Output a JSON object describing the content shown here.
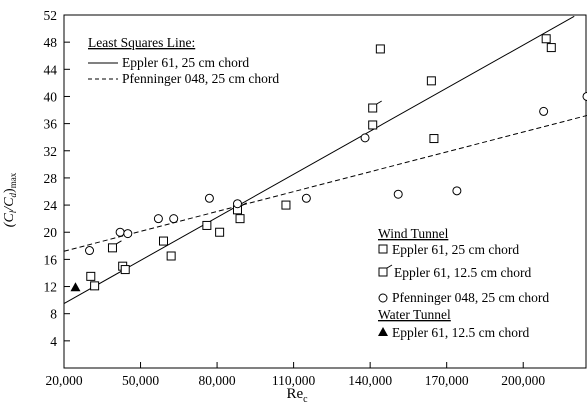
{
  "chart_data": {
    "type": "scatter",
    "xlabel": "Re",
    "xlabel_sub": "c",
    "ylabel_parts": [
      "(C",
      "l",
      "/C",
      "d",
      ")",
      "max"
    ],
    "xlim": [
      20000,
      225000
    ],
    "ylim": [
      0,
      52
    ],
    "x_ticks": [
      20000,
      50000,
      80000,
      110000,
      140000,
      170000,
      200000
    ],
    "x_tick_labels": [
      "20,000",
      "50,000",
      "80,000",
      "110,000",
      "140,000",
      "170,000",
      "200,000"
    ],
    "y_ticks": [
      4,
      8,
      12,
      16,
      20,
      24,
      28,
      32,
      36,
      40,
      44,
      48,
      52
    ],
    "y_tick_labels": [
      "4",
      "8",
      "12",
      "16",
      "20",
      "24",
      "28",
      "32",
      "36",
      "40",
      "44",
      "48",
      "52"
    ],
    "grid": false,
    "legend_lines": {
      "placement": "top-left",
      "title": "Least Squares Line:",
      "entries": [
        {
          "label": "Eppler 61, 25 cm chord",
          "style": "solid"
        },
        {
          "label": "Pfenninger 048, 25 cm chord",
          "style": "dashed"
        }
      ]
    },
    "legend_markers": {
      "placement": "bottom-right",
      "groups": [
        {
          "title": "Wind Tunnel",
          "entries": [
            {
              "label": "Eppler 61, 25 cm chord",
              "marker": "square"
            },
            {
              "label": "Eppler 61, 12.5 cm chord",
              "marker": "square-flag"
            },
            {
              "label": "Pfenninger 048, 25 cm chord",
              "marker": "circle"
            }
          ]
        },
        {
          "title": "Water Tunnel",
          "entries": [
            {
              "label": "Eppler 61, 12.5 cm chord",
              "marker": "triangle"
            }
          ]
        }
      ]
    },
    "lines": [
      {
        "style": "solid",
        "x": [
          20000,
          220000
        ],
        "y": [
          9.5,
          51.8
        ]
      },
      {
        "style": "dashed",
        "x": [
          20000,
          225000
        ],
        "y": [
          17.2,
          37.2
        ]
      }
    ],
    "series": [
      {
        "marker": "square",
        "x": [
          30500,
          32000,
          43000,
          44000,
          59000,
          62000,
          76000,
          81000,
          89000,
          107000,
          141000,
          144000,
          164000,
          165000,
          209000,
          211000
        ],
        "y": [
          13.5,
          12.1,
          15.0,
          14.5,
          18.7,
          16.5,
          21.0,
          20.0,
          22.0,
          24.0,
          35.8,
          47.0,
          42.3,
          33.8,
          48.5,
          47.2
        ]
      },
      {
        "marker": "square-flag",
        "x": [
          39000,
          88000,
          141000
        ],
        "y": [
          17.7,
          23.3,
          38.3
        ]
      },
      {
        "marker": "circle",
        "x": [
          30000,
          42000,
          45000,
          57000,
          63000,
          77000,
          88000,
          115000,
          138000,
          151000,
          174000,
          208000,
          225000
        ],
        "y": [
          17.3,
          20.0,
          19.8,
          22.0,
          22.0,
          25.0,
          24.2,
          25.0,
          33.9,
          25.6,
          26.1,
          37.8,
          40.0
        ]
      },
      {
        "marker": "triangle",
        "x": [
          24500
        ],
        "y": [
          11.9
        ]
      }
    ]
  }
}
